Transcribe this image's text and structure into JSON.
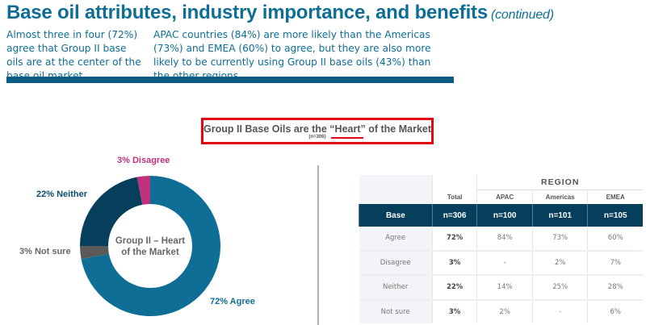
{
  "header": {
    "title": "Base oil attributes, industry importance, and benefits",
    "title_suffix": "(continued)",
    "intro_left": "Almost three in four (72%) agree that Group II base oils are at the center of the base oil market.",
    "intro_right": "APAC countries (84%) are more likely than the Americas (73%) and EMEA (60%) to agree, but they are also more likely to be currently using Group II base oils (43%) than the other regions."
  },
  "chart_title": {
    "text": "Group II Base Oils are the “Heart” of the Market",
    "n": "(n=306)"
  },
  "donut": {
    "center_line1": "Group II – Heart",
    "center_line2": "of the Market",
    "labels": {
      "disagree": "3% Disagree",
      "neither": "22% Neither",
      "not_sure": "3% Not sure",
      "agree": "72% Agree"
    }
  },
  "table": {
    "region_label": "REGION",
    "columns": [
      "Total",
      "APAC",
      "Americas",
      "EMEA"
    ],
    "base": {
      "label": "Base",
      "values": [
        "n=306",
        "n=100",
        "n=101",
        "n=105"
      ]
    },
    "rows": [
      {
        "label": "Agree",
        "values": [
          "72%",
          "84%",
          "73%",
          "60%"
        ]
      },
      {
        "label": "Disagree",
        "values": [
          "3%",
          "-",
          "2%",
          "7%"
        ]
      },
      {
        "label": "Neither",
        "values": [
          "22%",
          "14%",
          "25%",
          "28%"
        ]
      },
      {
        "label": "Not sure",
        "values": [
          "3%",
          "2%",
          "-",
          "6%"
        ]
      }
    ]
  },
  "colors": {
    "agree": "#0e6e96",
    "neither": "#053f5c",
    "disagree": "#c0307c",
    "not_sure": "#5a5a5a",
    "accent": "#e30613"
  },
  "chart_data": [
    {
      "type": "pie",
      "title": "Group II Base Oils are the “Heart” of the Market (n=306)",
      "center_label": "Group II – Heart of the Market",
      "categories": [
        "Agree",
        "Not sure",
        "Neither",
        "Disagree"
      ],
      "values": [
        72,
        3,
        22,
        3
      ],
      "unit": "%",
      "colors": [
        "#0e6e96",
        "#5a5a5a",
        "#053f5c",
        "#c0307c"
      ],
      "donut": true
    },
    {
      "type": "table",
      "title": "REGION",
      "columns": [
        "",
        "Total",
        "APAC",
        "Americas",
        "EMEA"
      ],
      "rows": [
        [
          "Base",
          "n=306",
          "n=100",
          "n=101",
          "n=105"
        ],
        [
          "Agree",
          "72%",
          "84%",
          "73%",
          "60%"
        ],
        [
          "Disagree",
          "3%",
          "-",
          "2%",
          "7%"
        ],
        [
          "Neither",
          "22%",
          "14%",
          "25%",
          "28%"
        ],
        [
          "Not sure",
          "3%",
          "2%",
          "-",
          "6%"
        ]
      ]
    }
  ]
}
